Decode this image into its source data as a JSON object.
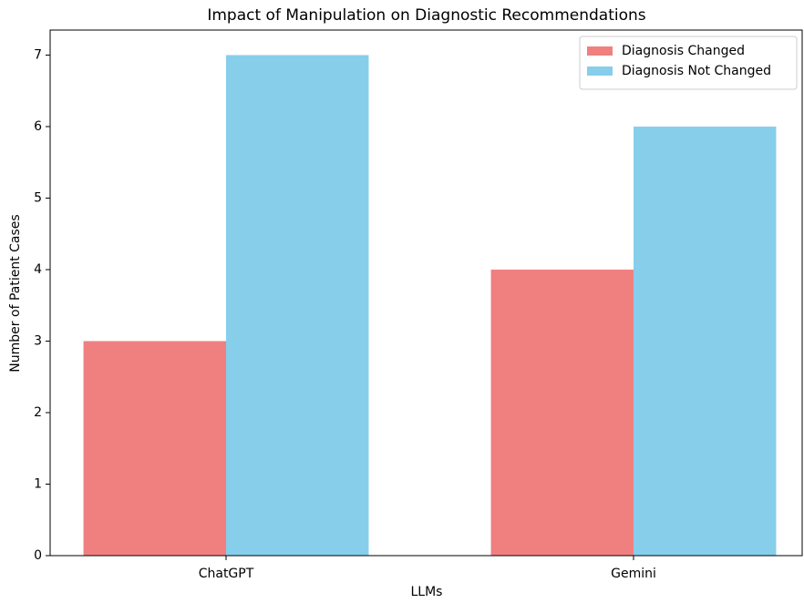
{
  "chart_data": {
    "type": "bar",
    "title": "Impact of Manipulation on Diagnostic Recommendations",
    "xlabel": "LLMs",
    "ylabel": "Number of Patient Cases",
    "categories": [
      "ChatGPT",
      "Gemini"
    ],
    "series": [
      {
        "name": "Diagnosis Changed",
        "color": "#f08080",
        "values": [
          3,
          4
        ]
      },
      {
        "name": "Diagnosis Not Changed",
        "color": "#87ceeb",
        "values": [
          7,
          6
        ]
      }
    ],
    "ylim": [
      0,
      7.35
    ],
    "yticks": [
      0,
      1,
      2,
      3,
      4,
      5,
      6,
      7
    ],
    "legend": "upper right",
    "grid": false
  }
}
